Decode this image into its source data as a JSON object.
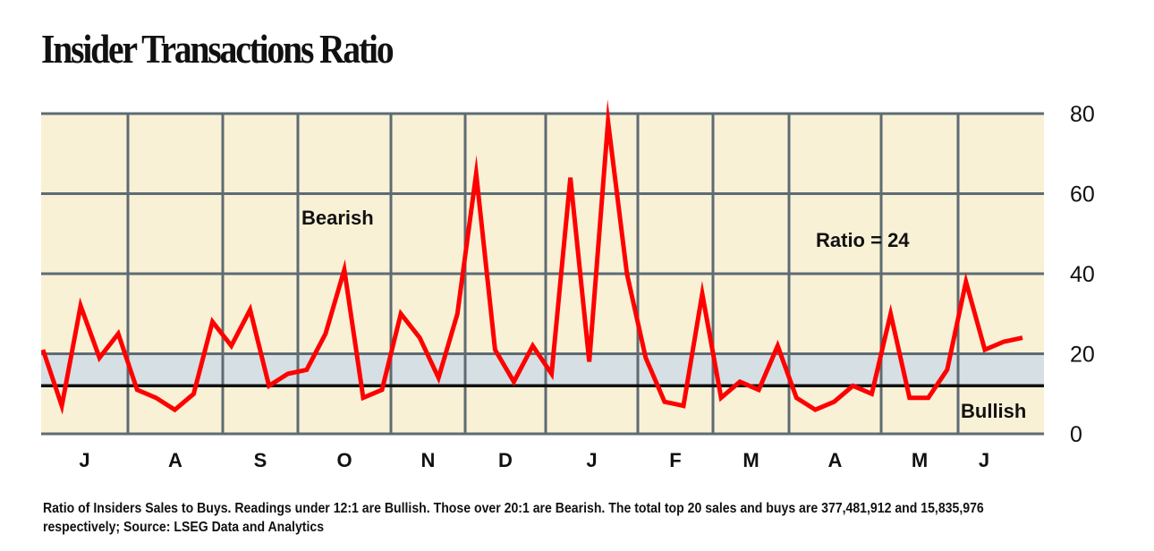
{
  "title": "Insider Transactions Ratio",
  "footnote": "Ratio of Insiders Sales to Buys. Readings under 12:1 are Bullish. Those over 20:1 are Bearish. The total top 20 sales and buys are 377,481,912 and 15,835,976 respectively; Source: LSEG Data and Analytics",
  "colors": {
    "background": "#f8f1d6",
    "band": "#d6dfe3",
    "grid": "#5e6b73",
    "line": "#ff0000",
    "bullish_line": "#111111"
  },
  "chart_data": {
    "type": "line",
    "title": "Insider Transactions Ratio",
    "xlabel": "",
    "ylabel": "",
    "ylim": [
      0,
      80
    ],
    "yticks": [
      0,
      20,
      40,
      60,
      80
    ],
    "month_labels": [
      "J",
      "A",
      "S",
      "O",
      "N",
      "D",
      "J",
      "F",
      "M",
      "A",
      "M",
      "J"
    ],
    "grid": true,
    "bands": [
      {
        "from": 12,
        "to": 20
      }
    ],
    "reference_line": 12,
    "annotations": {
      "bearish": "Bearish",
      "bullish": "Bullish",
      "ratio": "Ratio = 24"
    },
    "series": [
      {
        "values": [
          21,
          7,
          32,
          19,
          25,
          11,
          9,
          6,
          10,
          28,
          22,
          31,
          12,
          15,
          16,
          25,
          41,
          9,
          11,
          30,
          24,
          14,
          30,
          65,
          21,
          13,
          22,
          15,
          64,
          18,
          78,
          40,
          19,
          8,
          7,
          35,
          9,
          13,
          11,
          22,
          9,
          6,
          8,
          12,
          10,
          30,
          9,
          9,
          16,
          38,
          21,
          23,
          24
        ]
      }
    ]
  }
}
